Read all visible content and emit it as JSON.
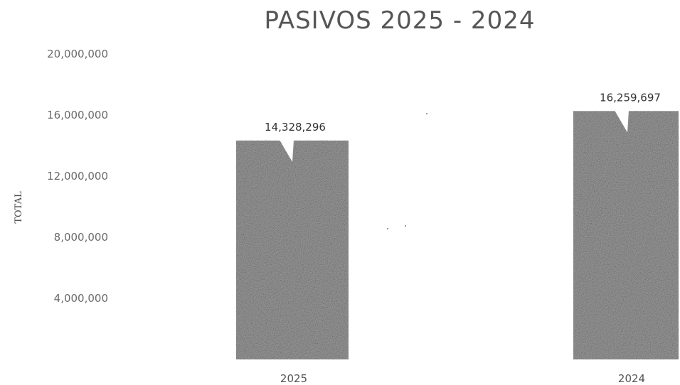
{
  "chart_data": {
    "type": "bar",
    "title": "PASIVOS 2025 - 2024",
    "xlabel": "",
    "ylabel": "TOTAL",
    "categories": [
      "2025",
      "2024"
    ],
    "values": [
      14328296,
      16259697
    ],
    "data_labels": [
      "14,328,296",
      "16,259,697"
    ],
    "y_ticks": [
      4000000,
      8000000,
      12000000,
      16000000,
      20000000
    ],
    "y_tick_labels": [
      "4,000,000",
      "8,000,000",
      "12,000,000",
      "16,000,000",
      "20,000,000"
    ],
    "ylim": [
      0,
      20000000
    ],
    "grid": false,
    "legend": "none",
    "bar_color": "#9a9a9a"
  }
}
